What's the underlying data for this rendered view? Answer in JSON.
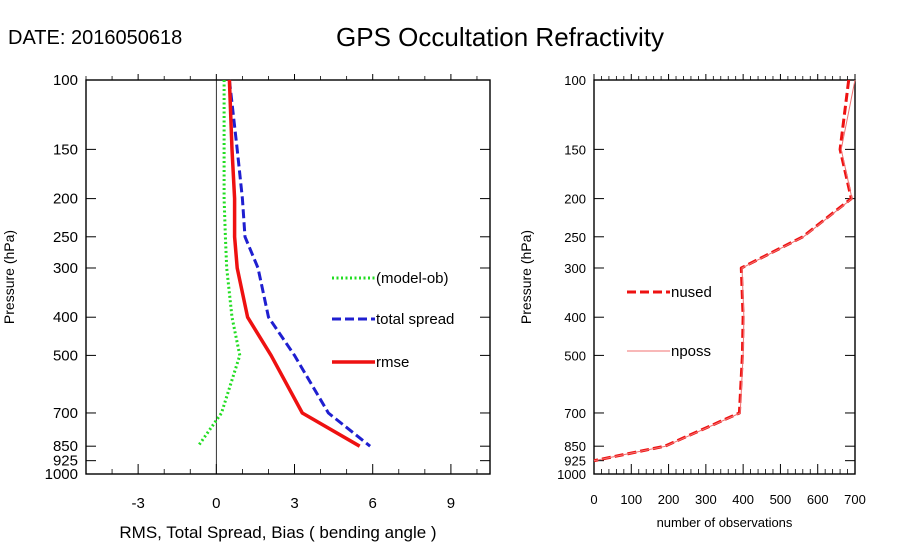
{
  "header": {
    "date_label": "DATE: 2016050618",
    "title": "GPS Occultation Refractivity"
  },
  "chart_data": [
    {
      "type": "line",
      "orientation": "vertical-profile",
      "ylabel": "Pressure (hPa)",
      "xlabel": "RMS, Total Spread, Bias ( bending angle )",
      "xlim": [
        -5,
        10.5
      ],
      "ylim": [
        1000,
        100
      ],
      "yscale": "log",
      "x_ticks": [
        -3,
        0,
        3,
        6,
        9
      ],
      "y_ticks": [
        100,
        150,
        200,
        250,
        300,
        400,
        500,
        700,
        850,
        925,
        1000
      ],
      "zero_line": true,
      "legend_position": "right-center",
      "series": [
        {
          "name": "(model-ob)",
          "color": "#22dd22",
          "style": "dotted",
          "points": [
            [
              0.3,
              100
            ],
            [
              0.3,
              150
            ],
            [
              0.3,
              200
            ],
            [
              0.35,
              250
            ],
            [
              0.4,
              300
            ],
            [
              0.6,
              400
            ],
            [
              0.9,
              500
            ],
            [
              0.2,
              700
            ],
            [
              -0.7,
              850
            ]
          ]
        },
        {
          "name": "total spread",
          "color": "#1f1fd0",
          "style": "dashed",
          "points": [
            [
              0.5,
              100
            ],
            [
              0.8,
              150
            ],
            [
              1.0,
              200
            ],
            [
              1.1,
              250
            ],
            [
              1.6,
              300
            ],
            [
              2.0,
              400
            ],
            [
              3.0,
              500
            ],
            [
              4.3,
              700
            ],
            [
              5.9,
              850
            ]
          ]
        },
        {
          "name": "rmse",
          "color": "#ee1111",
          "style": "solid",
          "points": [
            [
              0.5,
              100
            ],
            [
              0.6,
              150
            ],
            [
              0.7,
              200
            ],
            [
              0.7,
              250
            ],
            [
              0.8,
              300
            ],
            [
              1.2,
              400
            ],
            [
              2.1,
              500
            ],
            [
              3.3,
              700
            ],
            [
              5.5,
              850
            ]
          ]
        }
      ]
    },
    {
      "type": "line",
      "orientation": "vertical-profile",
      "ylabel": "Pressure (hPa)",
      "xlabel": "number of observations",
      "xlim": [
        0,
        700
      ],
      "ylim": [
        1000,
        100
      ],
      "yscale": "log",
      "x_ticks": [
        0,
        100,
        200,
        300,
        400,
        500,
        600,
        700
      ],
      "y_ticks": [
        100,
        150,
        200,
        250,
        300,
        400,
        500,
        700,
        850,
        925,
        1000
      ],
      "legend_position": "left-center",
      "series": [
        {
          "name": "nused",
          "color": "#ee1111",
          "style": "dashed",
          "points": [
            [
              683,
              100
            ],
            [
              660,
              150
            ],
            [
              690,
              200
            ],
            [
              560,
              250
            ],
            [
              395,
              300
            ],
            [
              400,
              400
            ],
            [
              398,
              500
            ],
            [
              390,
              700
            ],
            [
              190,
              850
            ],
            [
              0,
              925
            ]
          ]
        },
        {
          "name": "npossible",
          "legend_label": "nposs",
          "color": "#f07070",
          "style": "thin",
          "points": [
            [
              700,
              100
            ],
            [
              663,
              150
            ],
            [
              692,
              200
            ],
            [
              562,
              250
            ],
            [
              397,
              300
            ],
            [
              402,
              400
            ],
            [
              400,
              500
            ],
            [
              392,
              700
            ],
            [
              192,
              850
            ],
            [
              0,
              925
            ]
          ]
        }
      ]
    }
  ]
}
